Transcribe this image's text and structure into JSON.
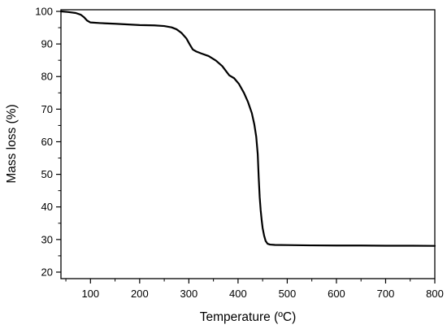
{
  "chart_data": {
    "type": "line",
    "title": "",
    "xlabel": "Temperature (ºC)",
    "ylabel": "Mass loss (%)",
    "xlim": [
      40,
      800
    ],
    "ylim": [
      18,
      100.5
    ],
    "x_ticks": [
      100,
      200,
      300,
      400,
      500,
      600,
      700,
      800
    ],
    "y_ticks": [
      20,
      30,
      40,
      50,
      60,
      70,
      80,
      90,
      100
    ],
    "x_minor_ticks": [
      50,
      150,
      250,
      350,
      450,
      550,
      650,
      750
    ],
    "y_minor_ticks": [
      25,
      35,
      45,
      55,
      65,
      75,
      85,
      95
    ],
    "grid": false,
    "legend": "none",
    "line_color": "#000000",
    "series": [
      {
        "x": [
          40,
          55,
          70,
          80,
          87,
          93,
          100,
          120,
          150,
          200,
          230,
          250,
          265,
          275,
          285,
          295,
          302,
          308,
          315,
          325,
          340,
          355,
          368,
          375,
          382,
          392,
          402,
          412,
          420,
          428,
          433,
          437,
          440,
          442,
          444,
          446,
          448,
          450,
          453,
          456,
          460,
          465,
          475,
          500,
          550,
          600,
          650,
          700,
          750,
          800
        ],
        "y": [
          100,
          99.8,
          99.5,
          99.0,
          98.2,
          97.2,
          96.6,
          96.4,
          96.2,
          95.8,
          95.7,
          95.5,
          95.1,
          94.5,
          93.4,
          91.7,
          89.8,
          88.3,
          87.7,
          87.1,
          86.3,
          84.9,
          83.2,
          81.8,
          80.4,
          79.5,
          77.7,
          75.0,
          72.3,
          68.8,
          65.4,
          61.5,
          56.2,
          49.0,
          43.0,
          39.0,
          36.0,
          33.5,
          31.2,
          29.6,
          28.7,
          28.45,
          28.35,
          28.3,
          28.2,
          28.15,
          28.15,
          28.1,
          28.1,
          28.05
        ]
      }
    ]
  }
}
